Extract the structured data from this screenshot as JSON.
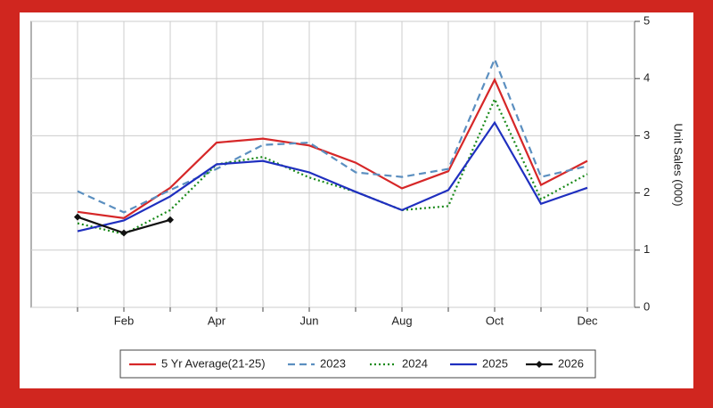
{
  "chart_data": {
    "type": "line",
    "y_label": "Unit Sales (000)",
    "categories": [
      null,
      "Feb",
      null,
      "Apr",
      null,
      "Jun",
      null,
      "Aug",
      null,
      "Oct",
      null,
      "Dec"
    ],
    "ylim": [
      0,
      5
    ],
    "yticks": [
      0,
      1,
      2,
      3,
      4,
      5
    ],
    "grid": true,
    "y_axis_side": "right",
    "legend": "bottom",
    "series": [
      {
        "name": "5 Yr Average(21-25)",
        "color": "#d62728",
        "style": "solid",
        "values": [
          1.67,
          1.56,
          2.09,
          2.88,
          2.95,
          2.83,
          2.53,
          2.08,
          2.38,
          3.98,
          2.14,
          2.56
        ]
      },
      {
        "name": "2023",
        "color": "#5b8fc0",
        "style": "dashed",
        "values": [
          2.03,
          1.66,
          2.05,
          2.42,
          2.84,
          2.88,
          2.36,
          2.28,
          2.42,
          4.34,
          2.28,
          2.47
        ]
      },
      {
        "name": "2024",
        "color": "#1a8a1a",
        "style": "dotted",
        "values": [
          1.47,
          1.28,
          1.7,
          2.5,
          2.63,
          2.27,
          2.02,
          1.7,
          1.77,
          3.64,
          1.89,
          2.33
        ]
      },
      {
        "name": "2025",
        "color": "#1f2fbf",
        "style": "solid",
        "values": [
          1.33,
          1.52,
          1.94,
          2.5,
          2.56,
          2.36,
          2.02,
          1.7,
          2.05,
          3.23,
          1.81,
          2.09
        ]
      },
      {
        "name": "2026",
        "color": "#111111",
        "style": "solid",
        "marker": "diamond",
        "values": [
          1.58,
          1.3,
          1.53,
          null,
          null,
          null,
          null,
          null,
          null,
          null,
          null,
          null
        ]
      }
    ]
  }
}
